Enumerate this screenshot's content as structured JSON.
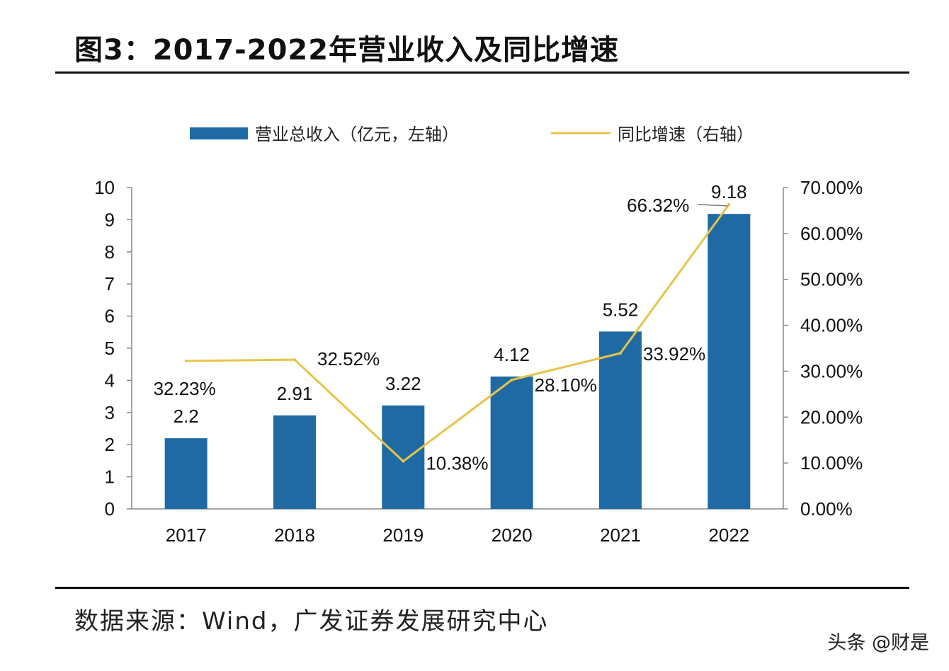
{
  "page": {
    "title": "图3：2017-2022年营业收入及同比增速",
    "source": "数据来源：Wind，广发证券发展研究中心",
    "watermark": "头条 @财是"
  },
  "chart_data": {
    "type": "bar",
    "title": "图3：2017-2022年营业收入及同比增速",
    "categories": [
      "2017",
      "2018",
      "2019",
      "2020",
      "2021",
      "2022"
    ],
    "series": [
      {
        "name": "营业总收入（亿元，左轴）",
        "type": "bar",
        "axis": "left",
        "color": "#1f6aa5",
        "values": [
          2.2,
          2.91,
          3.22,
          4.12,
          5.52,
          9.18
        ],
        "labels": [
          "2.2",
          "2.91",
          "3.22",
          "4.12",
          "5.52",
          "9.18"
        ]
      },
      {
        "name": "同比增速（右轴）",
        "type": "line",
        "axis": "right",
        "color": "#e6c449",
        "values": [
          32.23,
          32.52,
          10.38,
          28.1,
          33.92,
          66.32
        ],
        "labels": [
          "32.23%",
          "32.52%",
          "10.38%",
          "28.10%",
          "33.92%",
          "66.32%"
        ]
      }
    ],
    "y_left": {
      "min": 0,
      "max": 10,
      "ticks": [
        "0",
        "1",
        "2",
        "3",
        "4",
        "5",
        "6",
        "7",
        "8",
        "9",
        "10"
      ]
    },
    "y_right": {
      "min": 0,
      "max": 70,
      "ticks": [
        "0.00%",
        "10.00%",
        "20.00%",
        "30.00%",
        "40.00%",
        "50.00%",
        "60.00%",
        "70.00%"
      ]
    },
    "legend_position": "top-center",
    "grid": false
  }
}
